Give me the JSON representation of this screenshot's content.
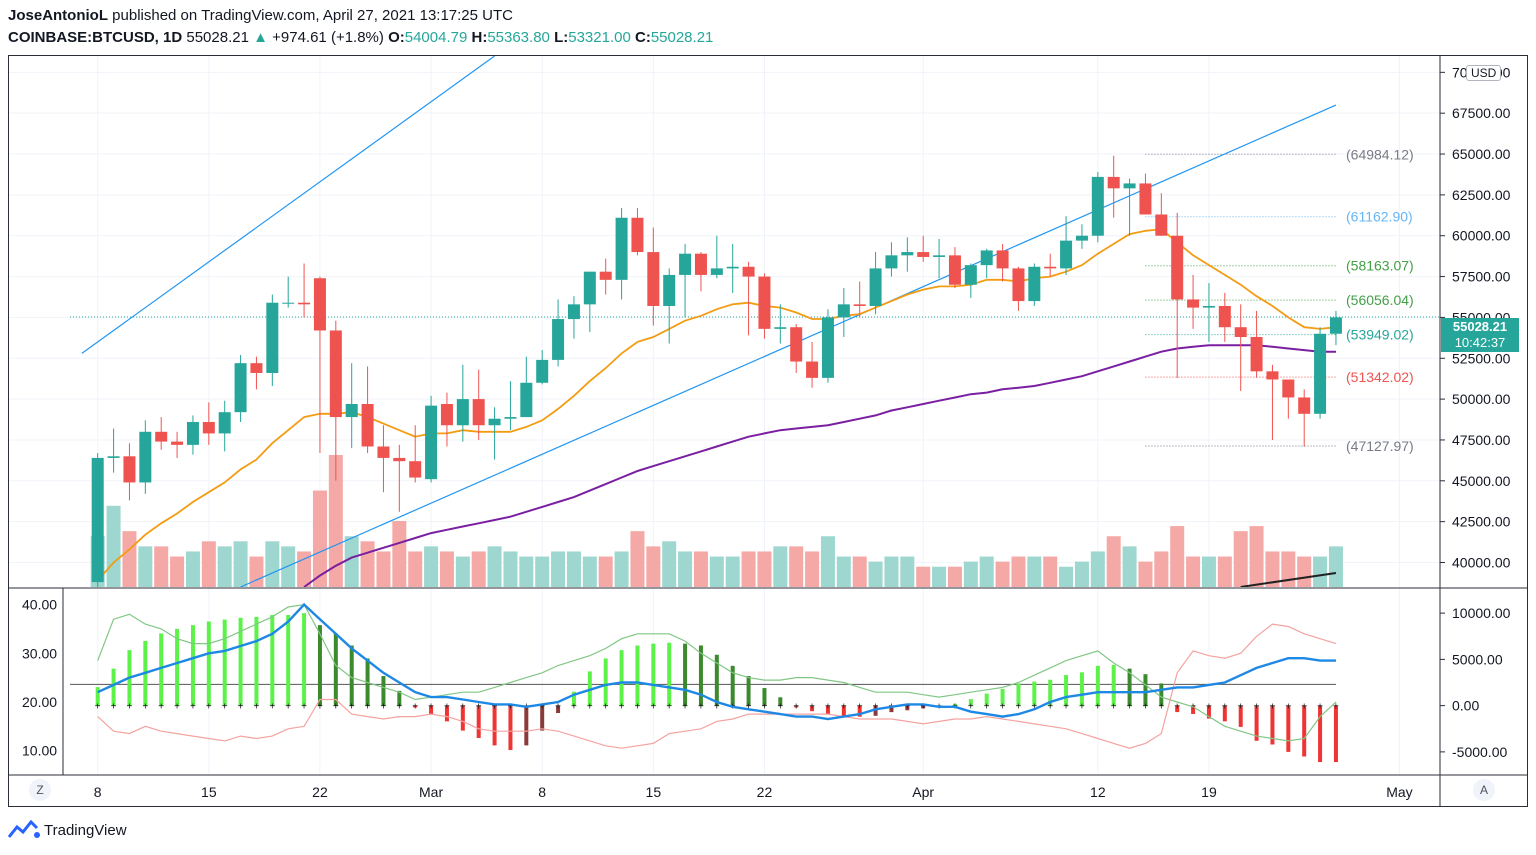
{
  "header": {
    "author": "JoseAntonioL",
    "published": "published on TradingView.com, April 27, 2021 13:17:25 UTC",
    "symbol": "COINBASE:BTCUSD, 1D",
    "last": "55028.21",
    "change_arrow": "▲",
    "change": "+974.61 (+1.8%)",
    "o_label": "O:",
    "o": "54004.79",
    "h_label": "H:",
    "h": "55363.80",
    "l_label": "L:",
    "l": "53321.00",
    "c_label": "C:",
    "c": "55028.21"
  },
  "price_scale": {
    "currency": "USD",
    "ticks": [
      "70000.00",
      "67500.00",
      "65000.00",
      "62500.00",
      "60000.00",
      "57500.00",
      "55000.00",
      "52500.00",
      "50000.00",
      "47500.00",
      "45000.00",
      "42500.00",
      "40000.00"
    ],
    "last_price": "55028.21",
    "countdown": "10:42:37"
  },
  "levels": [
    {
      "label": "(64984.12)",
      "value": 64984.12,
      "color": "#787b86"
    },
    {
      "label": "(61162.90)",
      "value": 61162.9,
      "color": "#64b5f6"
    },
    {
      "label": "(58163.07)",
      "value": 58163.07,
      "color": "#43a047"
    },
    {
      "label": "(56056.04)",
      "value": 56056.04,
      "color": "#43a047"
    },
    {
      "label": "(53949.02)",
      "value": 53949.02,
      "color": "#26a69a"
    },
    {
      "label": "(51342.02)",
      "value": 51342.02,
      "color": "#ef5350"
    },
    {
      "label": "(47127.97)",
      "value": 47127.97,
      "color": "#787b86"
    }
  ],
  "time_axis": {
    "labels": [
      {
        "text": "8",
        "day": 0
      },
      {
        "text": "15",
        "day": 7
      },
      {
        "text": "22",
        "day": 14
      },
      {
        "text": "Mar",
        "day": 21
      },
      {
        "text": "8",
        "day": 28
      },
      {
        "text": "15",
        "day": 35
      },
      {
        "text": "22",
        "day": 42
      },
      {
        "text": "Apr",
        "day": 52
      },
      {
        "text": "12",
        "day": 63
      },
      {
        "text": "19",
        "day": 70
      },
      {
        "text": "May",
        "day": 82
      }
    ],
    "left_button": "Z",
    "right_button": "A"
  },
  "osc_scale_left": [
    "40.00",
    "30.00",
    "20.00",
    "10.00"
  ],
  "osc_scale_right": [
    "10000.00",
    "5000.00",
    "0.00",
    "-5000.00"
  ],
  "brand": "TradingView",
  "colors": {
    "up": "#26a69a",
    "down": "#ef5350",
    "ema_fast": "#f39c12",
    "ema_slow": "#7b1fa2",
    "channel": "#2196f3"
  },
  "chart_data": {
    "type": "candlestick",
    "symbol": "COINBASE:BTCUSD",
    "interval": "1D",
    "first_date": "2021-02-08",
    "ylim": [
      38500,
      71000
    ],
    "candles": [
      [
        38800,
        46700,
        38100,
        46400
      ],
      [
        46400,
        48200,
        45500,
        46500
      ],
      [
        46500,
        47300,
        43800,
        44900
      ],
      [
        44900,
        48700,
        44200,
        48000
      ],
      [
        48000,
        48900,
        46900,
        47400
      ],
      [
        47400,
        48000,
        46400,
        47200
      ],
      [
        47200,
        49000,
        46600,
        48600
      ],
      [
        48600,
        49800,
        47200,
        47900
      ],
      [
        47900,
        49900,
        46800,
        49200
      ],
      [
        49200,
        52700,
        48600,
        52200
      ],
      [
        52200,
        52600,
        50600,
        51600
      ],
      [
        51600,
        56400,
        50800,
        55900
      ],
      [
        55900,
        57500,
        55600,
        55900
      ],
      [
        55900,
        58300,
        55000,
        55800
      ],
      [
        57400,
        57500,
        46700,
        54200
      ],
      [
        54200,
        54800,
        45000,
        48900
      ],
      [
        48900,
        52200,
        47000,
        49700
      ],
      [
        49700,
        52000,
        46700,
        47100
      ],
      [
        47100,
        48400,
        44300,
        46400
      ],
      [
        46400,
        47200,
        43100,
        46200
      ],
      [
        46200,
        48400,
        44900,
        45200
      ],
      [
        45100,
        50200,
        44900,
        49600
      ],
      [
        49700,
        50400,
        47100,
        48400
      ],
      [
        48400,
        52100,
        47400,
        50000
      ],
      [
        50000,
        51800,
        47500,
        48400
      ],
      [
        48400,
        49500,
        46300,
        48800
      ],
      [
        48800,
        51100,
        48100,
        48900
      ],
      [
        48900,
        52600,
        48900,
        51000
      ],
      [
        51000,
        53000,
        50900,
        52400
      ],
      [
        52400,
        56100,
        52000,
        54900
      ],
      [
        54900,
        56300,
        53700,
        55800
      ],
      [
        55800,
        57800,
        54100,
        57800
      ],
      [
        57800,
        58600,
        56400,
        57300
      ],
      [
        57300,
        61700,
        56100,
        61100
      ],
      [
        61100,
        61700,
        58800,
        59000
      ],
      [
        59000,
        60500,
        54500,
        55700
      ],
      [
        55700,
        58000,
        53400,
        57600
      ],
      [
        57600,
        59500,
        55000,
        58900
      ],
      [
        58900,
        59000,
        56600,
        57600
      ],
      [
        57600,
        60000,
        57400,
        58000
      ],
      [
        58000,
        59500,
        56500,
        58100
      ],
      [
        58100,
        58400,
        53900,
        57500
      ],
      [
        57500,
        57700,
        53700,
        54300
      ],
      [
        54300,
        55800,
        53400,
        54400
      ],
      [
        54400,
        54600,
        51600,
        52300
      ],
      [
        52300,
        53500,
        50700,
        51300
      ],
      [
        51300,
        55500,
        51000,
        55000
      ],
      [
        55000,
        56800,
        53800,
        55800
      ],
      [
        55800,
        57200,
        55000,
        55700
      ],
      [
        55700,
        59000,
        55200,
        58000
      ],
      [
        58000,
        59600,
        57500,
        58800
      ],
      [
        58800,
        59900,
        57800,
        59000
      ],
      [
        59000,
        60000,
        58400,
        58700
      ],
      [
        58700,
        59800,
        57400,
        58800
      ],
      [
        58800,
        59300,
        56800,
        57000
      ],
      [
        57000,
        58300,
        56200,
        58200
      ],
      [
        58200,
        59200,
        57400,
        59100
      ],
      [
        59100,
        59500,
        57200,
        58000
      ],
      [
        58000,
        58100,
        55400,
        56000
      ],
      [
        56000,
        58300,
        55700,
        58100
      ],
      [
        58100,
        58900,
        57500,
        58000
      ],
      [
        58000,
        61200,
        57600,
        59700
      ],
      [
        59700,
        60700,
        59200,
        60000
      ],
      [
        60000,
        63900,
        59600,
        63600
      ],
      [
        63600,
        64900,
        61100,
        62900
      ],
      [
        62900,
        63500,
        60000,
        63200
      ],
      [
        63200,
        63800,
        61300,
        61300
      ],
      [
        61300,
        62600,
        60000,
        60000
      ],
      [
        60000,
        61400,
        51300,
        56100
      ],
      [
        56100,
        57600,
        54300,
        55600
      ],
      [
        55600,
        57100,
        53500,
        55700
      ],
      [
        55700,
        56500,
        53500,
        54400
      ],
      [
        54400,
        55800,
        50500,
        53800
      ],
      [
        53800,
        55400,
        51300,
        51700
      ],
      [
        51700,
        52100,
        47500,
        51200
      ],
      [
        51200,
        51200,
        48800,
        50100
      ],
      [
        50100,
        50600,
        47100,
        49100
      ],
      [
        49100,
        54400,
        48800,
        54000
      ],
      [
        54000,
        55400,
        53300,
        55000
      ]
    ],
    "ema_fast": [
      38900,
      40000,
      40800,
      41700,
      42400,
      43000,
      43700,
      44300,
      44900,
      45700,
      46300,
      47300,
      48100,
      48900,
      49100,
      49100,
      49200,
      48900,
      48500,
      48100,
      47700,
      47900,
      47900,
      48100,
      48000,
      48000,
      48000,
      48300,
      48700,
      49400,
      50200,
      51100,
      51900,
      52800,
      53500,
      53800,
      54300,
      54800,
      55100,
      55500,
      55800,
      55900,
      55700,
      55600,
      55300,
      54900,
      54900,
      55100,
      55200,
      55600,
      56000,
      56400,
      56700,
      56900,
      56900,
      57000,
      57300,
      57300,
      57200,
      57400,
      57500,
      57800,
      58200,
      58900,
      59500,
      60100,
      60300,
      60400,
      59600,
      58800,
      58200,
      57600,
      57000,
      56300,
      55700,
      55000,
      54400,
      54300,
      54400
    ],
    "ema_slow": [
      null,
      null,
      null,
      null,
      null,
      null,
      null,
      null,
      null,
      null,
      null,
      null,
      null,
      38500,
      39200,
      39800,
      40300,
      40600,
      40900,
      41200,
      41500,
      41800,
      42000,
      42200,
      42400,
      42600,
      42800,
      43100,
      43400,
      43700,
      44000,
      44400,
      44800,
      45200,
      45600,
      45900,
      46200,
      46500,
      46800,
      47100,
      47400,
      47700,
      47900,
      48100,
      48200,
      48300,
      48400,
      48600,
      48800,
      49000,
      49300,
      49500,
      49700,
      49900,
      50100,
      50300,
      50400,
      50600,
      50700,
      50800,
      51000,
      51200,
      51400,
      51700,
      52000,
      52300,
      52600,
      52900,
      53100,
      53200,
      53300,
      53300,
      53300,
      53300,
      53200,
      53100,
      53000,
      52900,
      52900
    ],
    "volume": [
      1.0,
      1.6,
      1.1,
      0.8,
      0.8,
      0.6,
      0.7,
      0.9,
      0.8,
      0.9,
      0.6,
      0.9,
      0.8,
      0.7,
      1.9,
      2.6,
      1.0,
      0.9,
      0.7,
      1.3,
      0.7,
      0.8,
      0.7,
      0.6,
      0.7,
      0.8,
      0.7,
      0.6,
      0.6,
      0.7,
      0.7,
      0.6,
      0.6,
      0.7,
      1.1,
      0.8,
      0.9,
      0.7,
      0.7,
      0.6,
      0.6,
      0.7,
      0.7,
      0.8,
      0.8,
      0.7,
      1.0,
      0.6,
      0.6,
      0.5,
      0.6,
      0.6,
      0.4,
      0.4,
      0.4,
      0.5,
      0.6,
      0.5,
      0.6,
      0.6,
      0.6,
      0.4,
      0.5,
      0.7,
      1.0,
      0.8,
      0.5,
      0.7,
      1.2,
      0.6,
      0.6,
      0.6,
      1.1,
      1.2,
      0.7,
      0.7,
      0.6,
      0.6,
      0.8
    ],
    "channel_lines": [
      {
        "points": [
          [
            -1,
            52800
          ],
          [
            25,
            71000
          ]
        ]
      },
      {
        "points": [
          [
            9,
            38500
          ],
          [
            78,
            68000
          ]
        ]
      }
    ],
    "oscillator": {
      "left_ylim": [
        5,
        43
      ],
      "right_ylim": [
        -7500,
        12500
      ],
      "histogram": [
        2000,
        4000,
        6000,
        7000,
        7800,
        8300,
        8700,
        9100,
        9300,
        9500,
        9600,
        9800,
        9800,
        10000,
        8700,
        7800,
        6500,
        5100,
        3200,
        1600,
        -200,
        -900,
        -1700,
        -2700,
        -3500,
        -4300,
        -4800,
        -4300,
        -2700,
        -800,
        1500,
        3700,
        5100,
        6000,
        6500,
        6700,
        6800,
        6700,
        6500,
        5500,
        4300,
        3200,
        1900,
        900,
        -200,
        -600,
        -900,
        -1100,
        -1200,
        -1100,
        -700,
        -500,
        -300,
        -100,
        200,
        700,
        1300,
        1800,
        2400,
        2600,
        2800,
        3300,
        3600,
        4300,
        4400,
        4000,
        3400,
        2400,
        -700,
        -900,
        -1400,
        -1700,
        -2300,
        -3800,
        -4200,
        -5000,
        -5500,
        -6100,
        -6100
      ],
      "signal_line": [
        22,
        23.5,
        25,
        26,
        27,
        28,
        29,
        30,
        30.5,
        31.5,
        32.5,
        34,
        36.5,
        40,
        37,
        34,
        31,
        28.5,
        26,
        24,
        22,
        21,
        21,
        20.5,
        20,
        19.5,
        19.5,
        19,
        19.5,
        20,
        21.5,
        22.5,
        23.5,
        24,
        24,
        23.5,
        23,
        22.5,
        21.5,
        20,
        19,
        18.5,
        18,
        17.5,
        17,
        17,
        16.5,
        17,
        17.5,
        18.5,
        19,
        19.5,
        19.5,
        19,
        19,
        18,
        17.5,
        17,
        17.5,
        18.5,
        20,
        21,
        21.5,
        22,
        22,
        22,
        22,
        22.5,
        23,
        23,
        23.5,
        24,
        25.5,
        27,
        28,
        29,
        29,
        28.5,
        28.5
      ],
      "green_line": [
        28.5,
        37,
        38,
        36,
        35,
        33,
        32,
        32,
        33,
        34.5,
        36,
        37.5,
        39.5,
        40,
        34,
        27.5,
        25,
        24,
        23,
        22,
        20.5,
        21,
        21.5,
        22,
        22,
        23,
        24,
        25,
        26,
        27.5,
        28.5,
        29.5,
        31,
        33,
        34,
        34,
        34,
        32.5,
        30,
        28,
        26,
        25,
        24.5,
        24.5,
        25,
        25,
        24.5,
        24,
        23,
        22,
        22,
        22,
        21.5,
        21,
        21.5,
        22,
        22.5,
        23,
        24,
        25.5,
        27,
        28.5,
        29.5,
        30.5,
        28,
        26,
        23.5,
        21,
        20,
        19,
        17,
        15,
        14,
        13,
        12.5,
        12,
        12.5,
        17,
        20
      ],
      "red_line": [
        17,
        14,
        13.5,
        15,
        14,
        13.5,
        13,
        12.5,
        12,
        13,
        12.5,
        13,
        14.5,
        15,
        20.5,
        20.5,
        17.5,
        17,
        16.5,
        17,
        17,
        17.5,
        17,
        16,
        14.5,
        14,
        14,
        14,
        14.5,
        14,
        13,
        12,
        11,
        10.5,
        11,
        11.5,
        13.5,
        14,
        14.5,
        16,
        16.5,
        17.5,
        17.5,
        17.5,
        17.5,
        17.5,
        17.5,
        17,
        16.5,
        16.5,
        16.5,
        16,
        15.5,
        16,
        16.5,
        16.5,
        17,
        16.5,
        16,
        15.5,
        15,
        14.5,
        13.5,
        12.5,
        11.5,
        10.5,
        11.5,
        13.5,
        26,
        30.5,
        29.5,
        29,
        30,
        33.5,
        36,
        35.5,
        34,
        33,
        32
      ]
    }
  }
}
